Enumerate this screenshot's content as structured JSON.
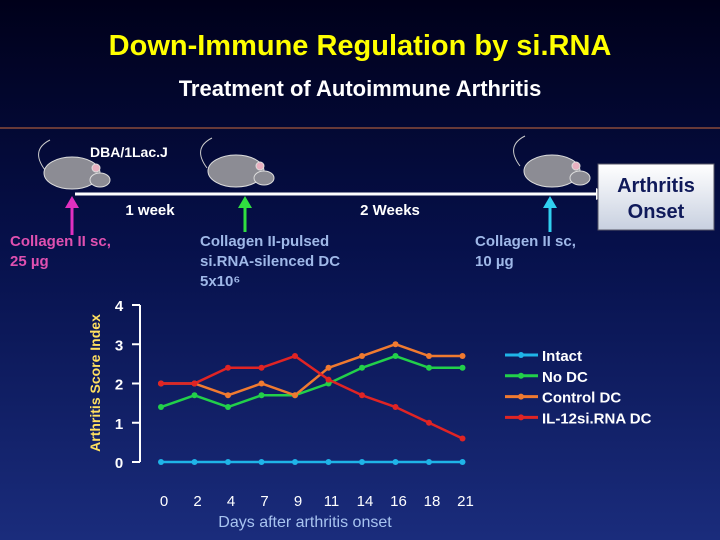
{
  "header": {
    "title": "Down-Immune Regulation by si.RNA",
    "subtitle": "Treatment of Autoimmune Arthritis"
  },
  "timeline": {
    "strain": "DBA/1Lac.J",
    "week1": "1 week",
    "week2": "2 Weeks",
    "onset": [
      "Arthritis",
      "Onset"
    ],
    "injections": [
      {
        "lines": [
          "Collagen II sc,",
          "25 µg"
        ]
      },
      {
        "lines": [
          "Collagen II-pulsed",
          "si.RNA-silenced DC",
          "5x10⁶"
        ]
      },
      {
        "lines": [
          "Collagen II sc,",
          "10 µg"
        ]
      }
    ]
  },
  "chart_data": {
    "type": "line",
    "x_label": "Days after arthritis onset",
    "y_label": "Arthritis Score Index",
    "categories": [
      "0",
      "2",
      "4",
      "7",
      "9",
      "11",
      "14",
      "16",
      "18",
      "21"
    ],
    "ylim": [
      0,
      4
    ],
    "yticks": [
      0,
      1,
      2,
      3,
      4
    ],
    "series": [
      {
        "name": "Intact",
        "color": "#1fb4e8",
        "values": [
          0,
          0,
          0,
          0,
          0,
          0,
          0,
          0,
          0,
          0
        ]
      },
      {
        "name": "No DC",
        "color": "#22d04a",
        "values": [
          1.4,
          1.7,
          1.4,
          1.7,
          1.7,
          2.0,
          2.4,
          2.7,
          2.4,
          2.4
        ]
      },
      {
        "name": "Control DC",
        "color": "#f07a30",
        "values": [
          2.0,
          2.0,
          1.7,
          2.0,
          1.7,
          2.4,
          2.7,
          3.0,
          2.7,
          2.7
        ]
      },
      {
        "name": "IL-12si.RNA DC",
        "color": "#e02424",
        "values": [
          2.0,
          2.0,
          2.4,
          2.4,
          2.7,
          2.1,
          1.7,
          1.4,
          1.0,
          0.6
        ]
      }
    ]
  }
}
